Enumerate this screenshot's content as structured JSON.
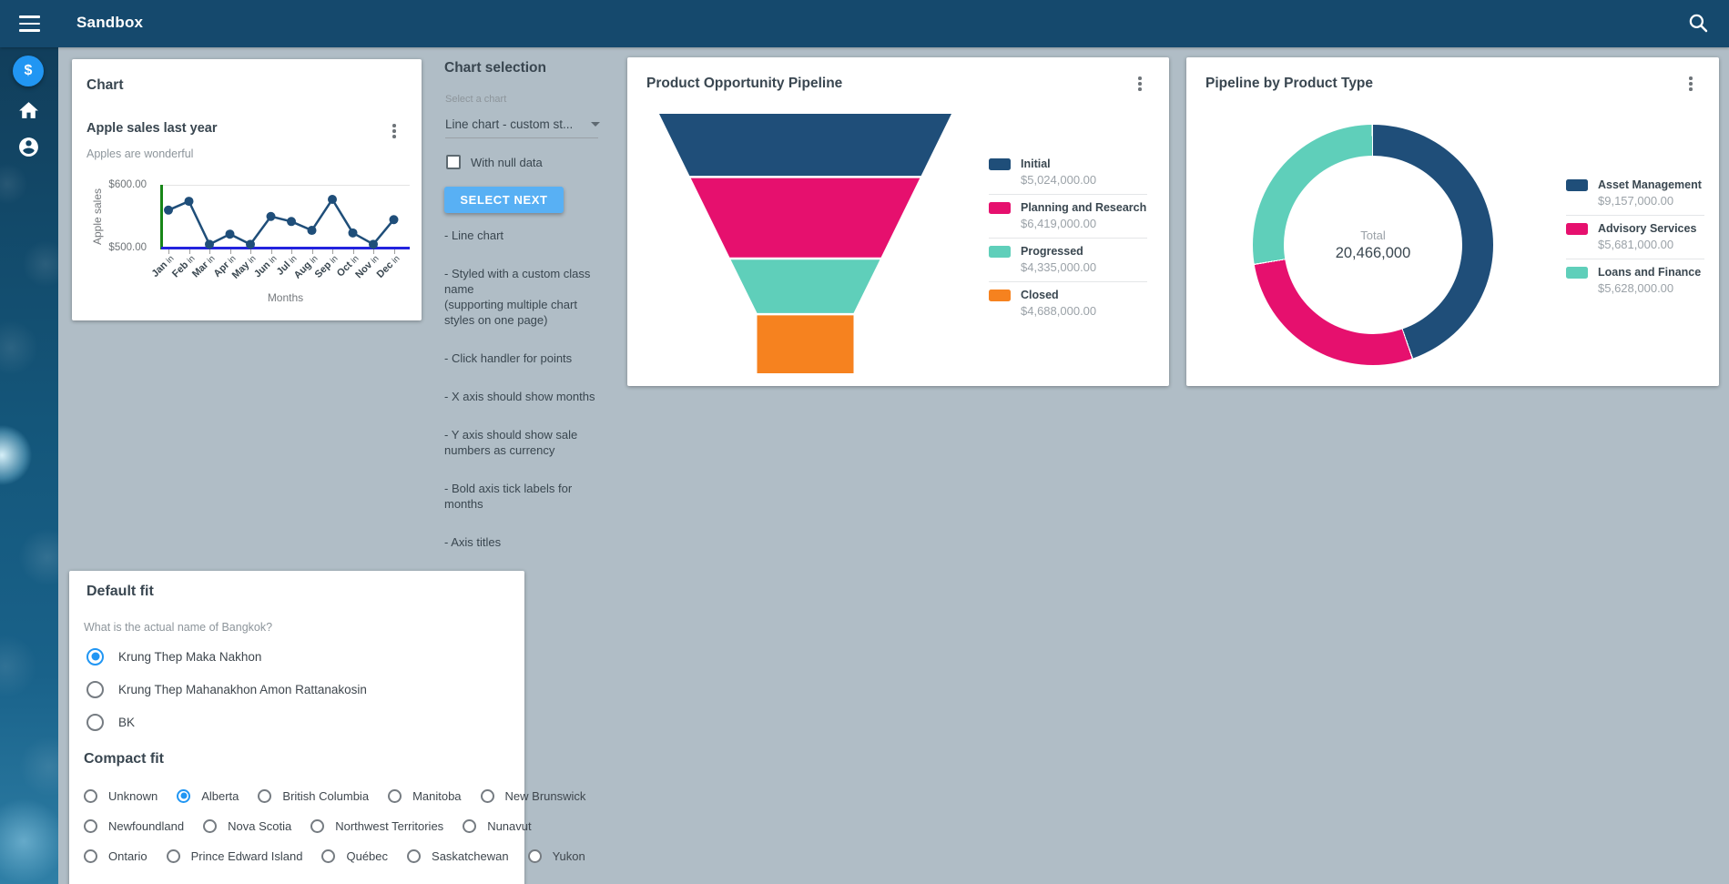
{
  "app_bar": {
    "title": "Sandbox"
  },
  "sidebar": {
    "fab_glyph": "$"
  },
  "chart_card": {
    "card_title": "Chart",
    "title": "Apple sales last year",
    "subtitle": "Apples are wonderful",
    "chart_data": {
      "type": "line",
      "title": "Apple sales last year",
      "xlabel": "Months",
      "ylabel": "Apple sales",
      "ylim": [
        500,
        600
      ],
      "yticks": [
        "$600.00",
        "$500.00"
      ],
      "tick_prefix": "in",
      "categories": [
        "Jan",
        "Feb",
        "Mar",
        "Apr",
        "May",
        "Jun",
        "Jul",
        "Aug",
        "Sep",
        "Oct",
        "Nov",
        "Dec"
      ],
      "values": [
        560,
        574,
        506,
        522,
        506,
        550,
        542,
        528,
        577,
        524,
        506,
        545
      ],
      "line_color": "#1F4E79",
      "x_axis_color": "#2323DE",
      "y_axis_color": "#188618"
    }
  },
  "chart_selection": {
    "title": "Chart selection",
    "select_label": "Select a chart",
    "select_value": "Line chart - custom st...",
    "checkbox_label": "With null data",
    "checkbox_checked": false,
    "button_label": "SELECT NEXT",
    "notes": [
      [
        "- Line chart"
      ],
      [
        "- Styled with a custom class",
        "name",
        "(supporting multiple chart",
        "styles on one page)"
      ],
      [
        "- Click handler for points"
      ],
      [
        "- X axis should show months"
      ],
      [
        "- Y axis should show sale",
        "numbers as currency"
      ],
      [
        "- Bold axis tick labels for",
        "months"
      ],
      [
        "- Axis titles"
      ]
    ]
  },
  "funnel_card": {
    "title": "Product Opportunity Pipeline",
    "chart_data": {
      "type": "funnel",
      "stages": [
        {
          "label": "Initial",
          "value": 5024000,
          "display": "$5,024,000.00",
          "color": "#1F4E79"
        },
        {
          "label": "Planning and Research",
          "value": 6419000,
          "display": "$6,419,000.00",
          "color": "#E6106E"
        },
        {
          "label": "Progressed",
          "value": 4335000,
          "display": "$4,335,000.00",
          "color": "#5FCFBA"
        },
        {
          "label": "Closed",
          "value": 4688000,
          "display": "$4,688,000.00",
          "color": "#F6821F"
        }
      ]
    }
  },
  "donut_card": {
    "title": "Pipeline by Product Type",
    "center_label": "Total",
    "center_value": "20,466,000",
    "chart_data": {
      "type": "pie",
      "donut": true,
      "total": 20466000,
      "slices": [
        {
          "label": "Asset Management",
          "value": 9157000,
          "display": "$9,157,000.00",
          "color": "#1F4E79"
        },
        {
          "label": "Advisory Services",
          "value": 5681000,
          "display": "$5,681,000.00",
          "color": "#E6106E"
        },
        {
          "label": "Loans and Finance",
          "value": 5628000,
          "display": "$5,628,000.00",
          "color": "#5FCFBA"
        }
      ]
    }
  },
  "quiz_card": {
    "title": "Default fit",
    "question": "What is the actual name of Bangkok?",
    "options": [
      "Krung Thep Maka Nakhon",
      "Krung Thep Mahanakhon Amon Rattanakosin",
      "BK"
    ],
    "selected_index": 0,
    "compact_title": "Compact fit",
    "compact_rows": [
      [
        "Unknown",
        "Alberta",
        "British Columbia",
        "Manitoba",
        "New Brunswick"
      ],
      [
        "Newfoundland",
        "Nova Scotia",
        "Northwest Territories",
        "Nunavut"
      ],
      [
        "Ontario",
        "Prince Edward Island",
        "Québec",
        "Saskatchewan",
        "Yukon"
      ]
    ],
    "compact_selected": "Alberta"
  },
  "colors": {
    "appbar": "#15496D",
    "background": "#B0BDC6",
    "accent_blue": "#2196F3",
    "button_blue": "#58B0F4",
    "navy": "#1F4E79",
    "pink": "#E6106E",
    "teal": "#5FCFBA",
    "orange": "#F6821F"
  }
}
